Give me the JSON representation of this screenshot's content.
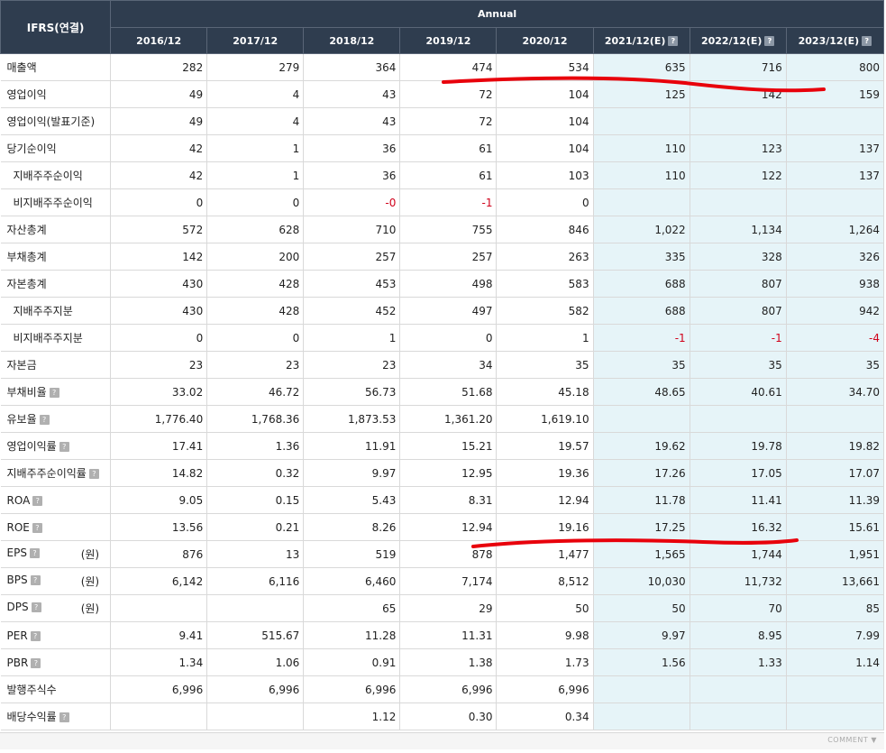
{
  "header": {
    "corner": "IFRS(연결)",
    "group": "Annual",
    "years": [
      "2016/12",
      "2017/12",
      "2018/12",
      "2019/12",
      "2020/12",
      "2021/12(E)",
      "2022/12(E)",
      "2023/12(E)"
    ],
    "help_glyph": "?"
  },
  "rows": [
    {
      "label": "매출액",
      "cells": [
        "282",
        "279",
        "364",
        "474",
        "534",
        "635",
        "716",
        "800"
      ]
    },
    {
      "label": "영업이익",
      "cells": [
        "49",
        "4",
        "43",
        "72",
        "104",
        "125",
        "142",
        "159"
      ]
    },
    {
      "label": "영업이익(발표기준)",
      "cells": [
        "49",
        "4",
        "43",
        "72",
        "104",
        "",
        "",
        ""
      ]
    },
    {
      "label": "당기순이익",
      "cells": [
        "42",
        "1",
        "36",
        "61",
        "104",
        "110",
        "123",
        "137"
      ]
    },
    {
      "label": "지배주주순이익",
      "sub": true,
      "cells": [
        "42",
        "1",
        "36",
        "61",
        "103",
        "110",
        "122",
        "137"
      ]
    },
    {
      "label": "비지배주주순이익",
      "sub": true,
      "cells": [
        "0",
        "0",
        "-0",
        "-1",
        "0",
        "",
        "",
        ""
      ]
    },
    {
      "label": "자산총계",
      "cells": [
        "572",
        "628",
        "710",
        "755",
        "846",
        "1,022",
        "1,134",
        "1,264"
      ]
    },
    {
      "label": "부채총계",
      "cells": [
        "142",
        "200",
        "257",
        "257",
        "263",
        "335",
        "328",
        "326"
      ]
    },
    {
      "label": "자본총계",
      "cells": [
        "430",
        "428",
        "453",
        "498",
        "583",
        "688",
        "807",
        "938"
      ]
    },
    {
      "label": "지배주주지분",
      "sub": true,
      "cells": [
        "430",
        "428",
        "452",
        "497",
        "582",
        "688",
        "807",
        "942"
      ]
    },
    {
      "label": "비지배주주지분",
      "sub": true,
      "cells": [
        "0",
        "0",
        "1",
        "0",
        "1",
        "-1",
        "-1",
        "-4"
      ]
    },
    {
      "label": "자본금",
      "cells": [
        "23",
        "23",
        "23",
        "34",
        "35",
        "35",
        "35",
        "35"
      ]
    },
    {
      "label": "부채비율",
      "help": true,
      "cells": [
        "33.02",
        "46.72",
        "56.73",
        "51.68",
        "45.18",
        "48.65",
        "40.61",
        "34.70"
      ]
    },
    {
      "label": "유보율",
      "help": true,
      "cells": [
        "1,776.40",
        "1,768.36",
        "1,873.53",
        "1,361.20",
        "1,619.10",
        "",
        "",
        ""
      ]
    },
    {
      "label": "영업이익률",
      "help": true,
      "cells": [
        "17.41",
        "1.36",
        "11.91",
        "15.21",
        "19.57",
        "19.62",
        "19.78",
        "19.82"
      ]
    },
    {
      "label": "지배주주순이익률",
      "help": true,
      "cells": [
        "14.82",
        "0.32",
        "9.97",
        "12.95",
        "19.36",
        "17.26",
        "17.05",
        "17.07"
      ]
    },
    {
      "label": "ROA",
      "help": true,
      "cells": [
        "9.05",
        "0.15",
        "5.43",
        "8.31",
        "12.94",
        "11.78",
        "11.41",
        "11.39"
      ]
    },
    {
      "label": "ROE",
      "help": true,
      "cells": [
        "13.56",
        "0.21",
        "8.26",
        "12.94",
        "19.16",
        "17.25",
        "16.32",
        "15.61"
      ]
    },
    {
      "label": "EPS",
      "help": true,
      "unit": "(원)",
      "cells": [
        "876",
        "13",
        "519",
        "878",
        "1,477",
        "1,565",
        "1,744",
        "1,951"
      ]
    },
    {
      "label": "BPS",
      "help": true,
      "unit": "(원)",
      "cells": [
        "6,142",
        "6,116",
        "6,460",
        "7,174",
        "8,512",
        "10,030",
        "11,732",
        "13,661"
      ]
    },
    {
      "label": "DPS",
      "help": true,
      "unit": "(원)",
      "cells": [
        "",
        "",
        "65",
        "29",
        "50",
        "50",
        "70",
        "85"
      ]
    },
    {
      "label": "PER",
      "help": true,
      "cells": [
        "9.41",
        "515.67",
        "11.28",
        "11.31",
        "9.98",
        "9.97",
        "8.95",
        "7.99"
      ]
    },
    {
      "label": "PBR",
      "help": true,
      "cells": [
        "1.34",
        "1.06",
        "0.91",
        "1.38",
        "1.73",
        "1.56",
        "1.33",
        "1.14"
      ]
    },
    {
      "label": "발행주식수",
      "cells": [
        "6,996",
        "6,996",
        "6,996",
        "6,996",
        "6,996",
        "",
        "",
        ""
      ]
    },
    {
      "label": "배당수익률",
      "help": true,
      "cells": [
        "",
        "",
        "1.12",
        "0.30",
        "0.34",
        "",
        "",
        ""
      ]
    }
  ],
  "footer": {
    "comment": "COMMENT ▼"
  },
  "colors": {
    "header_bg": "#2f3d4f",
    "estimate_bg": "#e6f4f8",
    "negative": "#d0021b",
    "annotation": "#e8000b"
  }
}
